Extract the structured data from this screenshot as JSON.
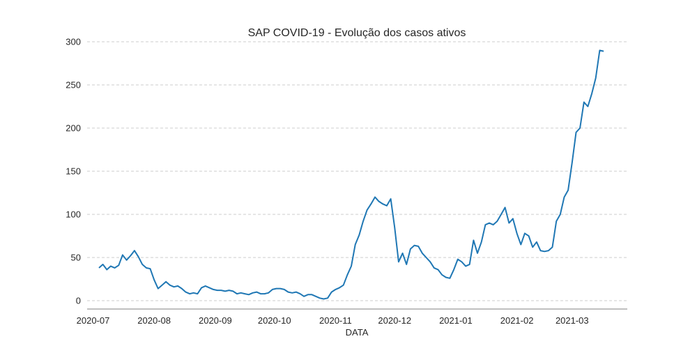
{
  "chart_data": {
    "type": "line",
    "title": "SAP COVID-19 - Evolução dos casos ativos",
    "xlabel": "DATA",
    "ylabel": "",
    "ylim": [
      0,
      300
    ],
    "xlim": [
      "2020-06-28",
      "2021-03-29"
    ],
    "grid": "horizontal dashed",
    "legend": "none",
    "colors": {
      "line": "#1f77b4",
      "grid": "#cccccc",
      "axis": "#808080"
    },
    "x_ticks": [
      "2020-07",
      "2020-08",
      "2020-09",
      "2020-10",
      "2020-11",
      "2020-12",
      "2021-01",
      "2021-02",
      "2021-03"
    ],
    "y_ticks": [
      "0",
      "50",
      "100",
      "150",
      "200",
      "250",
      "300"
    ],
    "series": [
      {
        "x": [
          "2020-07-04",
          "2020-07-06",
          "2020-07-08",
          "2020-07-10",
          "2020-07-12",
          "2020-07-14",
          "2020-07-16",
          "2020-07-18",
          "2020-07-20",
          "2020-07-22",
          "2020-07-24",
          "2020-07-26",
          "2020-07-28",
          "2020-07-30",
          "2020-08-01",
          "2020-08-03",
          "2020-08-05",
          "2020-08-07",
          "2020-08-09",
          "2020-08-11",
          "2020-08-13",
          "2020-08-15",
          "2020-08-17",
          "2020-08-19",
          "2020-08-21",
          "2020-08-23",
          "2020-08-25",
          "2020-08-27",
          "2020-08-29",
          "2020-08-31",
          "2020-09-02",
          "2020-09-04",
          "2020-09-06",
          "2020-09-08",
          "2020-09-10",
          "2020-09-12",
          "2020-09-14",
          "2020-09-16",
          "2020-09-18",
          "2020-09-20",
          "2020-09-22",
          "2020-09-24",
          "2020-09-26",
          "2020-09-28",
          "2020-09-30",
          "2020-10-02",
          "2020-10-04",
          "2020-10-06",
          "2020-10-08",
          "2020-10-10",
          "2020-10-12",
          "2020-10-14",
          "2020-10-16",
          "2020-10-18",
          "2020-10-20",
          "2020-10-22",
          "2020-10-24",
          "2020-10-26",
          "2020-10-28",
          "2020-10-30",
          "2020-11-01",
          "2020-11-03",
          "2020-11-05",
          "2020-11-07",
          "2020-11-09",
          "2020-11-11",
          "2020-11-13",
          "2020-11-15",
          "2020-11-17",
          "2020-11-19",
          "2020-11-21",
          "2020-11-23",
          "2020-11-25",
          "2020-11-27",
          "2020-11-29",
          "2020-12-01",
          "2020-12-03",
          "2020-12-05",
          "2020-12-07",
          "2020-12-09",
          "2020-12-11",
          "2020-12-13",
          "2020-12-15",
          "2020-12-17",
          "2020-12-19",
          "2020-12-21",
          "2020-12-23",
          "2020-12-25",
          "2020-12-27",
          "2020-12-29",
          "2020-12-31",
          "2021-01-02",
          "2021-01-04",
          "2021-01-06",
          "2021-01-08",
          "2021-01-10",
          "2021-01-12",
          "2021-01-14",
          "2021-01-16",
          "2021-01-18",
          "2021-01-20",
          "2021-01-22",
          "2021-01-24",
          "2021-01-26",
          "2021-01-28",
          "2021-01-30",
          "2021-02-01",
          "2021-02-03",
          "2021-02-05",
          "2021-02-07",
          "2021-02-09",
          "2021-02-11",
          "2021-02-13",
          "2021-02-15",
          "2021-02-17",
          "2021-02-19",
          "2021-02-21",
          "2021-02-23",
          "2021-02-25",
          "2021-02-27",
          "2021-03-01",
          "2021-03-03",
          "2021-03-05",
          "2021-03-07",
          "2021-03-09",
          "2021-03-11",
          "2021-03-13",
          "2021-03-15",
          "2021-03-17"
        ],
        "y": [
          38,
          42,
          36,
          40,
          38,
          41,
          53,
          47,
          52,
          58,
          51,
          42,
          38,
          37,
          24,
          14,
          18,
          22,
          18,
          16,
          17,
          14,
          10,
          8,
          9,
          8,
          15,
          17,
          15,
          13,
          12,
          12,
          11,
          12,
          11,
          8,
          9,
          8,
          7,
          9,
          10,
          8,
          8,
          9,
          13,
          14,
          14,
          13,
          10,
          9,
          10,
          8,
          5,
          7,
          7,
          5,
          3,
          2,
          3,
          10,
          13,
          15,
          18,
          30,
          40,
          65,
          76,
          92,
          105,
          112,
          120,
          115,
          112,
          110,
          118,
          85,
          45,
          55,
          42,
          60,
          64,
          63,
          55,
          50,
          45,
          38,
          36,
          30,
          27,
          26,
          36,
          48,
          45,
          40,
          42,
          70,
          55,
          68,
          88,
          90,
          88,
          92,
          100,
          108,
          90,
          95,
          78,
          65,
          78,
          75,
          62,
          68,
          58,
          57,
          58,
          62,
          92,
          100,
          120,
          128,
          160,
          195,
          200,
          230,
          225,
          240,
          258,
          290,
          289
        ]
      }
    ]
  }
}
